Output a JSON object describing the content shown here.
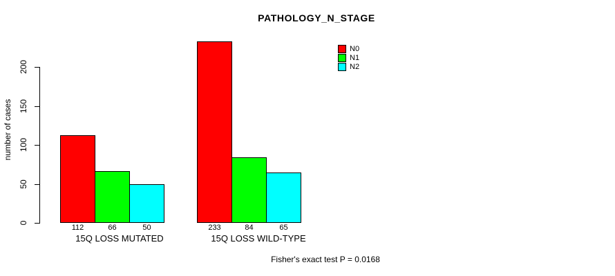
{
  "chart_data": {
    "type": "bar",
    "title": "PATHOLOGY_N_STAGE",
    "ylabel": "number of cases",
    "xlabel": "",
    "ylim": [
      0,
      240
    ],
    "yticks": [
      0,
      50,
      100,
      150,
      200
    ],
    "grid": false,
    "categories": [
      "15Q LOSS MUTATED",
      "15Q LOSS WILD-TYPE"
    ],
    "series": [
      {
        "name": "N0",
        "color": "#ff0000",
        "values": [
          112,
          233
        ]
      },
      {
        "name": "N1",
        "color": "#00ff00",
        "values": [
          66,
          84
        ]
      },
      {
        "name": "N2",
        "color": "#00ffff",
        "values": [
          50,
          65
        ]
      }
    ],
    "bar_value_labels": [
      [
        112,
        66,
        50
      ],
      [
        233,
        84,
        65
      ]
    ],
    "legend": {
      "position": "top-right",
      "entries": [
        "N0",
        "N1",
        "N2"
      ]
    },
    "footnote": "Fisher's exact test P = 0.0168"
  }
}
